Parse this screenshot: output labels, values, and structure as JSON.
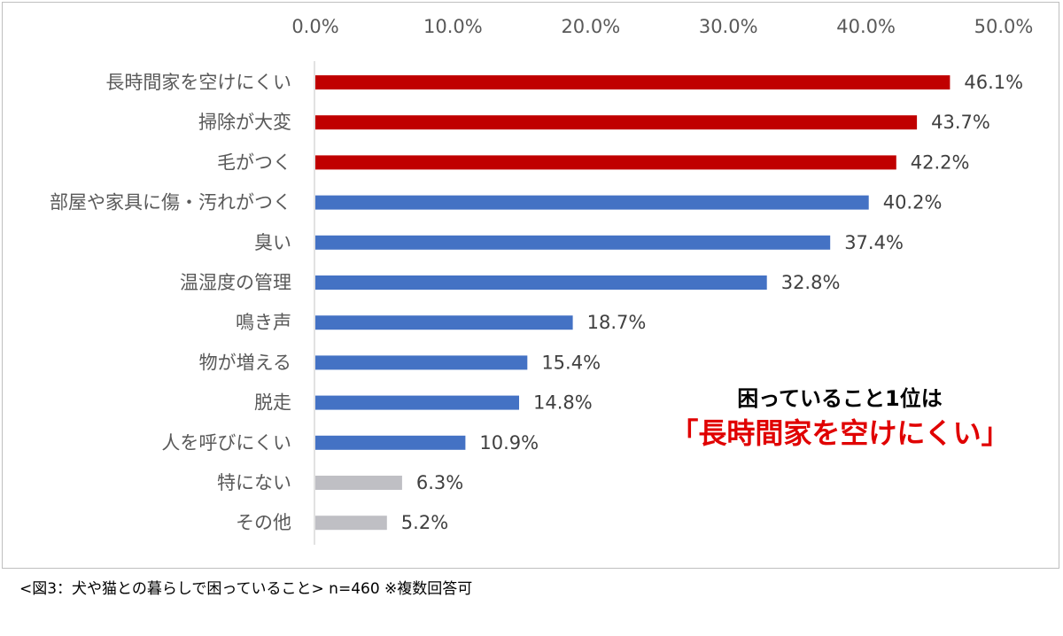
{
  "chart_data": {
    "type": "bar",
    "orientation": "horizontal",
    "categories": [
      "長時間家を空けにくい",
      "掃除が大変",
      "毛がつく",
      "部屋や家具に傷・汚れがつく",
      "臭い",
      "温湿度の管理",
      "鳴き声",
      "物が増える",
      "脱走",
      "人を呼びにくい",
      "特にない",
      "その他"
    ],
    "values": [
      46.1,
      43.7,
      42.2,
      40.2,
      37.4,
      32.8,
      18.7,
      15.4,
      14.8,
      10.9,
      6.3,
      5.2
    ],
    "value_labels": [
      "46.1%",
      "43.7%",
      "42.2%",
      "40.2%",
      "37.4%",
      "32.8%",
      "18.7%",
      "15.4%",
      "14.8%",
      "10.9%",
      "6.3%",
      "5.2%"
    ],
    "bar_colors": [
      "#c00000",
      "#c00000",
      "#c00000",
      "#4472c4",
      "#4472c4",
      "#4472c4",
      "#4472c4",
      "#4472c4",
      "#4472c4",
      "#4472c4",
      "#bfbfc4",
      "#bfbfc4"
    ],
    "x_ticks": [
      "0.0%",
      "10.0%",
      "20.0%",
      "30.0%",
      "40.0%",
      "50.0%"
    ],
    "xlim": [
      0,
      50
    ],
    "axis_position": "top",
    "grid": false,
    "legend": "none"
  },
  "annotation": {
    "line1": "困っていること1位は",
    "line2": "「長時間家を空けにくい」"
  },
  "caption": "<図3：犬や猫との暮らしで困っていること> n=460 ※複数回答可"
}
